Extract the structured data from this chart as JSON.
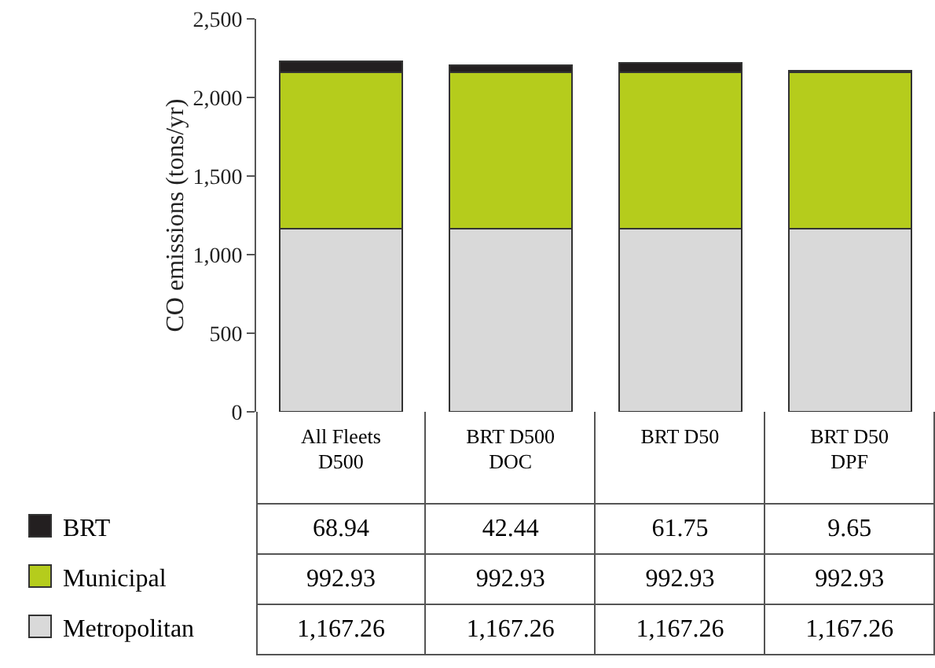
{
  "chart_data": {
    "type": "bar",
    "ylabel": "CO emissions (tons/yr)",
    "categories": [
      "All Fleets D500",
      "BRT D500 DOC",
      "BRT D50",
      "BRT D50 DPF"
    ],
    "stacked": true,
    "series": [
      {
        "name": "Metropolitan",
        "color": "#d9d9d9",
        "values": [
          1167.26,
          1167.26,
          1167.26,
          1167.26
        ],
        "value_labels": [
          "1,167.26",
          "1,167.26",
          "1,167.26",
          "1,167.26"
        ]
      },
      {
        "name": "Municipal",
        "color": "#b5cc1c",
        "values": [
          992.93,
          992.93,
          992.93,
          992.93
        ],
        "value_labels": [
          "992.93",
          "992.93",
          "992.93",
          "992.93"
        ]
      },
      {
        "name": "BRT",
        "color": "#231f20",
        "values": [
          68.94,
          42.44,
          61.75,
          9.65
        ],
        "value_labels": [
          "68.94",
          "42.44",
          "61.75",
          "9.65"
        ]
      }
    ],
    "ylim": [
      0,
      2500
    ],
    "yticks": [
      {
        "value": 0,
        "label": "0"
      },
      {
        "value": 500,
        "label": "500"
      },
      {
        "value": 1000,
        "label": "1,000"
      },
      {
        "value": 1500,
        "label": "1,500"
      },
      {
        "value": 2000,
        "label": "2,000"
      },
      {
        "value": 2500,
        "label": "2,500"
      }
    ],
    "grid": false,
    "legend": "bottom left"
  }
}
